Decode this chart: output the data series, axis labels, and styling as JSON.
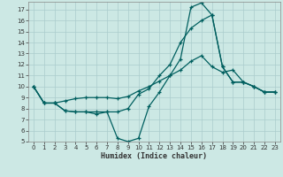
{
  "xlabel": "Humidex (Indice chaleur)",
  "bg_color": "#cce8e4",
  "grid_color": "#aacccc",
  "line_color": "#005f5f",
  "xlim": [
    -0.5,
    23.5
  ],
  "ylim": [
    5,
    17.7
  ],
  "xticks": [
    0,
    1,
    2,
    3,
    4,
    5,
    6,
    7,
    8,
    9,
    10,
    11,
    12,
    13,
    14,
    15,
    16,
    17,
    18,
    19,
    20,
    21,
    22,
    23
  ],
  "yticks": [
    5,
    6,
    7,
    8,
    9,
    10,
    11,
    12,
    13,
    14,
    15,
    16,
    17
  ],
  "line1_x": [
    0,
    1,
    2,
    3,
    4,
    5,
    6,
    7,
    8,
    9,
    10,
    11,
    12,
    13,
    14,
    15,
    16,
    17,
    18,
    19,
    20,
    21,
    22,
    23
  ],
  "line1_y": [
    10.0,
    8.5,
    8.5,
    7.8,
    7.7,
    7.7,
    7.7,
    7.7,
    7.7,
    8.0,
    9.3,
    9.8,
    11.0,
    12.0,
    14.0,
    15.3,
    16.0,
    16.5,
    11.8,
    10.4,
    10.4,
    10.0,
    9.5,
    9.5
  ],
  "line2_x": [
    0,
    1,
    2,
    3,
    4,
    5,
    6,
    7,
    8,
    9,
    10,
    11,
    12,
    13,
    14,
    15,
    16,
    17,
    18,
    19,
    20,
    21,
    22,
    23
  ],
  "line2_y": [
    10.0,
    8.5,
    8.5,
    7.8,
    7.7,
    7.7,
    7.5,
    7.7,
    5.3,
    5.0,
    5.3,
    8.2,
    9.5,
    11.0,
    12.5,
    17.2,
    17.6,
    16.5,
    11.8,
    10.4,
    10.4,
    10.0,
    9.5,
    9.5
  ],
  "line3_x": [
    0,
    1,
    2,
    3,
    4,
    5,
    6,
    7,
    8,
    9,
    10,
    11,
    12,
    13,
    14,
    15,
    16,
    17,
    18,
    19,
    20,
    21,
    22,
    23
  ],
  "line3_y": [
    10.0,
    8.5,
    8.5,
    8.7,
    8.9,
    9.0,
    9.0,
    9.0,
    8.9,
    9.1,
    9.6,
    10.0,
    10.5,
    11.0,
    11.5,
    12.3,
    12.8,
    11.8,
    11.3,
    11.5,
    10.4,
    10.0,
    9.5,
    9.5
  ],
  "tick_fontsize": 5.0,
  "xlabel_fontsize": 6.0
}
